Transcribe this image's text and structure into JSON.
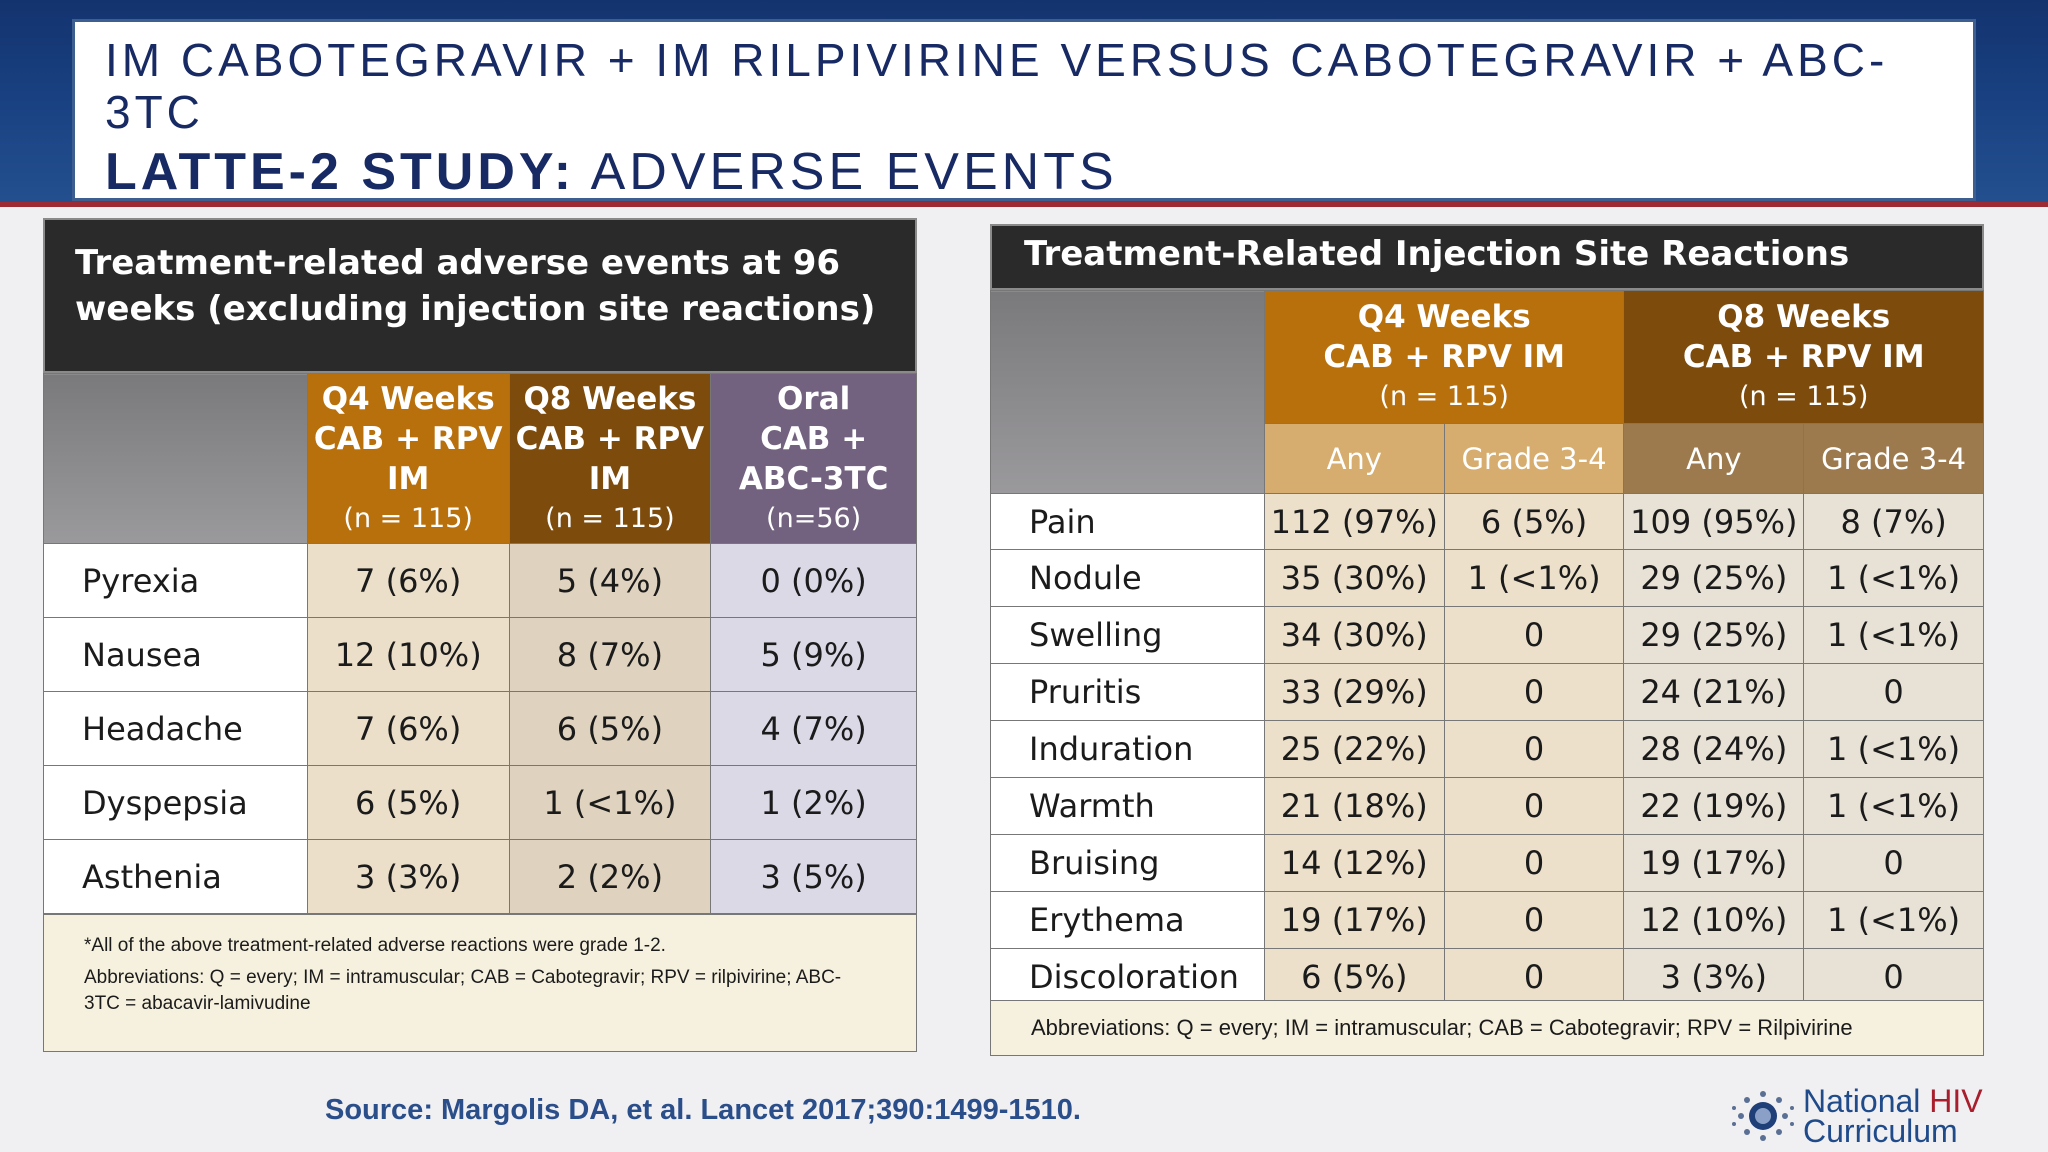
{
  "title": {
    "line1": "IM CABOTEGRAVIR + IM RILPIVIRINE VERSUS CABOTEGRAVIR + ABC-3TC",
    "line2_bold": "LATTE-2 STUDY:",
    "line2_rest": " ADVERSE EVENTS"
  },
  "left_table": {
    "header": "Treatment-related adverse events at 96 weeks (excluding injection site reactions)",
    "columns": [
      {
        "line1": "Q4 Weeks",
        "line2": "CAB + RPV",
        "line3": "IM",
        "n": "(n = 115)"
      },
      {
        "line1": "Q8 Weeks",
        "line2": "CAB + RPV",
        "line3": "IM",
        "n": "(n = 115)"
      },
      {
        "line1": "Oral",
        "line2": "CAB +",
        "line3": "ABC-3TC",
        "n": "(n=56)"
      }
    ],
    "rows": [
      {
        "label": "Pyrexia",
        "q4": "7 (6%)",
        "q8": "5 (4%)",
        "oral": "0 (0%)"
      },
      {
        "label": "Nausea",
        "q4": "12 (10%)",
        "q8": "8 (7%)",
        "oral": "5 (9%)"
      },
      {
        "label": "Headache",
        "q4": "7 (6%)",
        "q8": "6 (5%)",
        "oral": "4 (7%)"
      },
      {
        "label": "Dyspepsia",
        "q4": "6 (5%)",
        "q8": "1 (<1%)",
        "oral": "1 (2%)"
      },
      {
        "label": "Asthenia",
        "q4": "3 (3%)",
        "q8": "2 (2%)",
        "oral": "3 (5%)"
      }
    ],
    "footnote": "*All of the above treatment-related adverse reactions were grade 1-2.",
    "abbreviations": "Abbreviations: Q = every; IM = intramuscular; CAB = Cabotegravir; RPV = rilpivirine; ABC-3TC = abacavir-lamivudine"
  },
  "right_table": {
    "header": "Treatment-Related Injection Site Reactions",
    "groups": [
      {
        "line1": "Q4 Weeks",
        "line2": "CAB + RPV IM",
        "n": "(n = 115)"
      },
      {
        "line1": "Q8 Weeks",
        "line2": "CAB + RPV IM",
        "n": "(n = 115)"
      }
    ],
    "subcolumns": [
      "Any",
      "Grade 3-4",
      "Any",
      "Grade 3-4"
    ],
    "rows": [
      {
        "label": "Pain",
        "q4_any": "112 (97%)",
        "q4_g34": "6 (5%)",
        "q8_any": "109 (95%)",
        "q8_g34": "8 (7%)"
      },
      {
        "label": "Nodule",
        "q4_any": "35 (30%)",
        "q4_g34": "1 (<1%)",
        "q8_any": "29 (25%)",
        "q8_g34": "1 (<1%)"
      },
      {
        "label": "Swelling",
        "q4_any": "34 (30%)",
        "q4_g34": "0",
        "q8_any": "29 (25%)",
        "q8_g34": "1 (<1%)"
      },
      {
        "label": "Pruritis",
        "q4_any": "33 (29%)",
        "q4_g34": "0",
        "q8_any": "24 (21%)",
        "q8_g34": "0"
      },
      {
        "label": "Induration",
        "q4_any": "25 (22%)",
        "q4_g34": "0",
        "q8_any": "28 (24%)",
        "q8_g34": "1 (<1%)"
      },
      {
        "label": "Warmth",
        "q4_any": "21 (18%)",
        "q4_g34": "0",
        "q8_any": "22 (19%)",
        "q8_g34": "1 (<1%)"
      },
      {
        "label": "Bruising",
        "q4_any": "14 (12%)",
        "q4_g34": "0",
        "q8_any": "19 (17%)",
        "q8_g34": "0"
      },
      {
        "label": "Erythema",
        "q4_any": "19 (17%)",
        "q4_g34": "0",
        "q8_any": "12 (10%)",
        "q8_g34": "1 (<1%)"
      },
      {
        "label": "Discoloration",
        "q4_any": "6 (5%)",
        "q4_g34": "0",
        "q8_any": "3 (3%)",
        "q8_g34": "0"
      }
    ],
    "abbreviations": "Abbreviations: Q = every; IM = intramuscular; CAB = Cabotegravir; RPV = Rilpivirine"
  },
  "source": "Source: Margolis DA, et al. Lancet 2017;390:1499-1510.",
  "logo": {
    "word1": "National",
    "word2": "HIV",
    "word3": "Curriculum",
    "icon": "sunburst-logo-icon"
  },
  "colors": {
    "title_text": "#182a63",
    "q4_orange": "#b8700c",
    "q8_brown": "#7d4c0d",
    "oral_purple": "#73627f",
    "hiv_red": "#a81e2d"
  }
}
